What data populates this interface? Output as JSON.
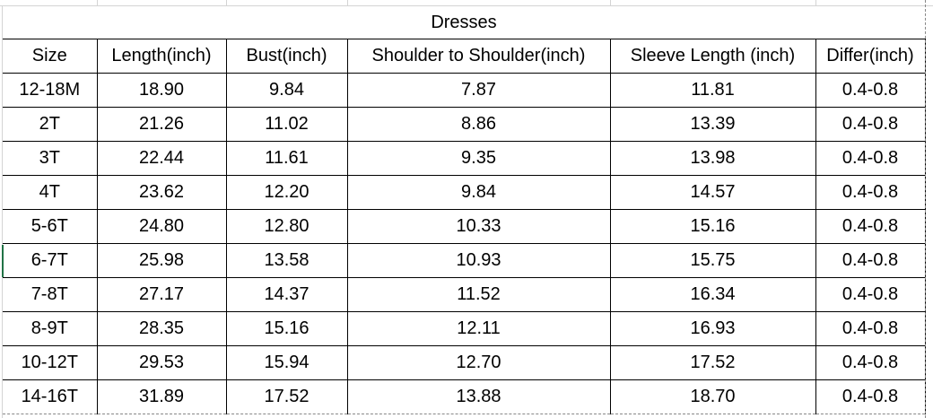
{
  "title": "Dresses",
  "headers": [
    "Size",
    "Length(inch)",
    "Bust(inch)",
    "Shoulder to Shoulder(inch)",
    "Sleeve Length (inch)",
    "Differ(inch)"
  ],
  "rows": [
    [
      "12-18M",
      "18.90",
      "9.84",
      "7.87",
      "11.81",
      "0.4-0.8"
    ],
    [
      "2T",
      "21.26",
      "11.02",
      "8.86",
      "13.39",
      "0.4-0.8"
    ],
    [
      "3T",
      "22.44",
      "11.61",
      "9.35",
      "13.98",
      "0.4-0.8"
    ],
    [
      "4T",
      "23.62",
      "12.20",
      "9.84",
      "14.57",
      "0.4-0.8"
    ],
    [
      "5-6T",
      "24.80",
      "12.80",
      "10.33",
      "15.16",
      "0.4-0.8"
    ],
    [
      "6-7T",
      "25.98",
      "13.58",
      "10.93",
      "15.75",
      "0.4-0.8"
    ],
    [
      "7-8T",
      "27.17",
      "14.37",
      "11.52",
      "16.34",
      "0.4-0.8"
    ],
    [
      "8-9T",
      "28.35",
      "15.16",
      "12.11",
      "16.93",
      "0.4-0.8"
    ],
    [
      "10-12T",
      "29.53",
      "15.94",
      "12.70",
      "17.52",
      "0.4-0.8"
    ],
    [
      "14-16T",
      "31.89",
      "17.52",
      "13.88",
      "18.70",
      "0.4-0.8"
    ]
  ]
}
